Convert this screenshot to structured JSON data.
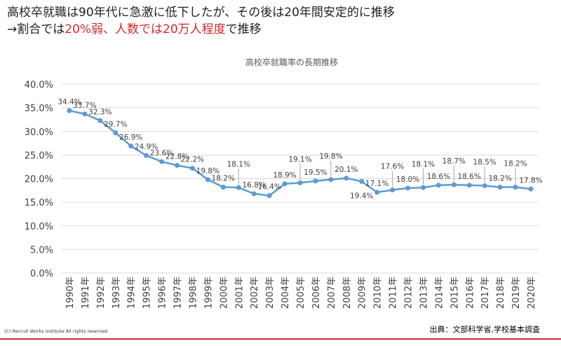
{
  "headline": {
    "line1": "高校卒就職は90年代に急激に低下したが、その後は20年間安定的に推移",
    "line2_prefix": "→割合では",
    "line2_red": "20%弱、人数では20万人程度",
    "line2_suffix": "で推移"
  },
  "footer": {
    "copyright": "(C) Recruit Works Institute All rights reserved",
    "source": "出典：文部科学省,学校基本調査"
  },
  "colors": {
    "line": "#5b9bd5",
    "accent_red": "#d32a2a",
    "grid": "#d9d9d9"
  },
  "chart_data": {
    "type": "line",
    "title": "高校卒就職率の長期推移",
    "categories": [
      "1990年",
      "1991年",
      "1992年",
      "1993年",
      "1994年",
      "1995年",
      "1996年",
      "1997年",
      "1998年",
      "1999年",
      "2000年",
      "2001年",
      "2002年",
      "2003年",
      "2004年",
      "2005年",
      "2006年",
      "2007年",
      "2008年",
      "2009年",
      "2010年",
      "2011年",
      "2012年",
      "2013年",
      "2014年",
      "2015年",
      "2016年",
      "2017年",
      "2018年",
      "2019年",
      "2020年"
    ],
    "values": [
      34.4,
      33.7,
      32.3,
      29.7,
      26.9,
      24.9,
      23.6,
      22.8,
      22.2,
      19.8,
      18.2,
      18.1,
      16.8,
      16.4,
      18.9,
      19.1,
      19.5,
      19.8,
      20.1,
      19.4,
      17.1,
      17.6,
      18.0,
      18.1,
      18.6,
      18.7,
      18.6,
      18.5,
      18.2,
      18.2,
      17.8
    ],
    "data_labels": [
      "34.4%",
      "33.7%",
      "32.3%",
      "29.7%",
      "26.9%",
      "24.9%",
      "23.6%",
      "22.8%",
      "22.2%",
      "19.8%",
      "18.2%",
      "18.1%",
      "16.8%",
      "16.4%",
      "18.9%",
      "19.1%",
      "19.5%",
      "19.8%",
      "20.1%",
      "19.4%",
      "17.1%",
      "17.6%",
      "18.0%",
      "18.1%",
      "18.6%",
      "18.7%",
      "18.6%",
      "18.5%",
      "18.2%",
      "18.2%",
      "17.8%"
    ],
    "y_ticks": [
      0,
      5,
      10,
      15,
      20,
      25,
      30,
      35,
      40
    ],
    "y_tick_labels": [
      "0.0%",
      "5.0%",
      "10.0%",
      "15.0%",
      "20.0%",
      "25.0%",
      "30.0%",
      "35.0%",
      "40.0%"
    ],
    "ylim": [
      0,
      40
    ],
    "grid": true,
    "legend": "none"
  }
}
